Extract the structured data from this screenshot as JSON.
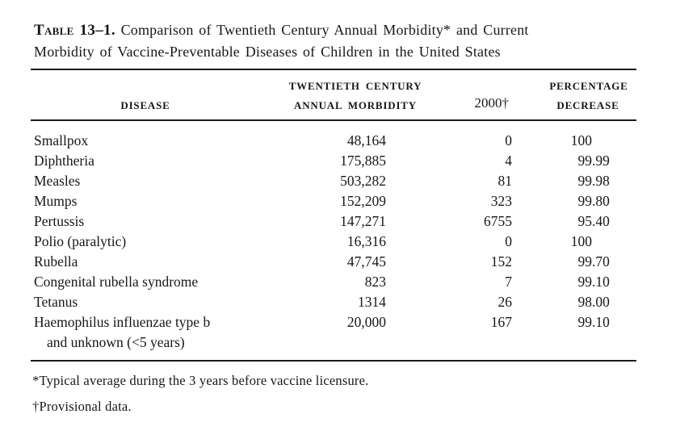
{
  "title": {
    "label": "Table 13–1.",
    "line1": "Comparison of Twentieth Century Annual Morbidity* and Current",
    "line2": "Morbidity of Vaccine-Preventable Diseases of Children in the United States"
  },
  "header": {
    "col1": "DISEASE",
    "col2_line1": "TWENTIETH CENTURY",
    "col2_line2": "ANNUAL MORBIDITY",
    "col3": "2000†",
    "col4_line1": "PERCENTAGE",
    "col4_line2": "DECREASE"
  },
  "table": {
    "rows": [
      {
        "disease": "Smallpox",
        "morbidity": "48,164",
        "y2000": "0",
        "decrease": "100"
      },
      {
        "disease": "Diphtheria",
        "morbidity": "175,885",
        "y2000": "4",
        "decrease": "99.99"
      },
      {
        "disease": "Measles",
        "morbidity": "503,282",
        "y2000": "81",
        "decrease": "99.98"
      },
      {
        "disease": "Mumps",
        "morbidity": "152,209",
        "y2000": "323",
        "decrease": "99.80"
      },
      {
        "disease": "Pertussis",
        "morbidity": "147,271",
        "y2000": "6755",
        "decrease": "95.40"
      },
      {
        "disease": "Polio (paralytic)",
        "morbidity": "16,316",
        "y2000": "0",
        "decrease": "100"
      },
      {
        "disease": "Rubella",
        "morbidity": "47,745",
        "y2000": "152",
        "decrease": "99.70"
      },
      {
        "disease": "Congenital rubella syndrome",
        "morbidity": "823",
        "y2000": "7",
        "decrease": "99.10"
      },
      {
        "disease": "Tetanus",
        "morbidity": "1314",
        "y2000": "26",
        "decrease": "98.00"
      },
      {
        "disease": "Haemophilus influenzae type b",
        "disease_line2": "and unknown (<5 years)",
        "morbidity": "20,000",
        "y2000": "167",
        "decrease": "99.10"
      }
    ]
  },
  "footnotes": [
    "*Typical average during the 3 years before vaccine licensure.",
    "†Provisional data."
  ],
  "colors": {
    "text": "#171717",
    "rule": "#1c1c1c",
    "background": "#ffffff"
  },
  "chart_data": {
    "type": "table",
    "title": "Table 13–1. Comparison of Twentieth Century Annual Morbidity and Current Morbidity of Vaccine-Preventable Diseases of Children in the United States",
    "columns": [
      "Disease",
      "Twentieth Century Annual Morbidity",
      "2000 (provisional)",
      "Percentage Decrease"
    ],
    "rows": [
      [
        "Smallpox",
        48164,
        0,
        100
      ],
      [
        "Diphtheria",
        175885,
        4,
        99.99
      ],
      [
        "Measles",
        503282,
        81,
        99.98
      ],
      [
        "Mumps",
        152209,
        323,
        99.8
      ],
      [
        "Pertussis",
        147271,
        6755,
        95.4
      ],
      [
        "Polio (paralytic)",
        16316,
        0,
        100
      ],
      [
        "Rubella",
        47745,
        152,
        99.7
      ],
      [
        "Congenital rubella syndrome",
        823,
        7,
        99.1
      ],
      [
        "Tetanus",
        1314,
        26,
        98.0
      ],
      [
        "Haemophilus influenzae type b and unknown (<5 years)",
        20000,
        167,
        99.1
      ]
    ],
    "footnotes": [
      "*Typical average during the 3 years before vaccine licensure.",
      "†Provisional data."
    ]
  }
}
